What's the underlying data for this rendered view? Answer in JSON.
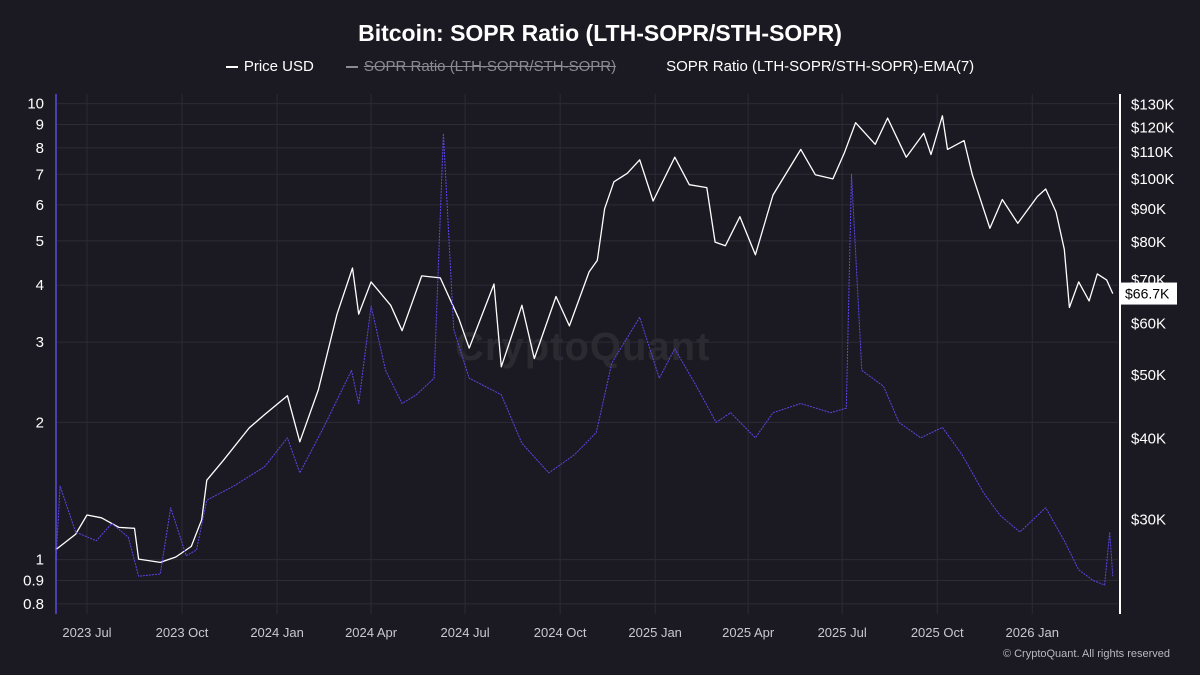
{
  "title": "Bitcoin: SOPR Ratio (LTH-SOPR/STH-SOPR)",
  "legend": [
    {
      "label": "Price USD",
      "color": "#ffffff",
      "enabled": true
    },
    {
      "label": "SOPR Ratio (LTH-SOPR/STH-SOPR)",
      "color": "#8b8a92",
      "enabled": false
    },
    {
      "label": "SOPR Ratio (LTH-SOPR/STH-SOPR)-EMA(7)",
      "color": "#5b46e6",
      "enabled": true
    }
  ],
  "watermark": "CryptoQuant",
  "copyright": "© CryptoQuant. All rights reserved",
  "price_badge": "$66.7K",
  "colors": {
    "background": "#1b1a22",
    "price": "#ffffff",
    "ratio_ema": "#5b46e6",
    "grid": "#2c2b36",
    "left_axis": "#4b3fb0"
  },
  "chart_data": {
    "type": "line",
    "title": "Bitcoin: SOPR Ratio (LTH-SOPR/STH-SOPR)",
    "x_range": [
      "2023-06-01",
      "2026-03-25"
    ],
    "x_ticks": [
      {
        "date": "2023-07-01",
        "label": "2023 Jul"
      },
      {
        "date": "2023-10-01",
        "label": "2023 Oct"
      },
      {
        "date": "2024-01-01",
        "label": "2024 Jan"
      },
      {
        "date": "2024-04-01",
        "label": "2024 Apr"
      },
      {
        "date": "2024-07-01",
        "label": "2024 Jul"
      },
      {
        "date": "2024-10-01",
        "label": "2024 Oct"
      },
      {
        "date": "2025-01-01",
        "label": "2025 Jan"
      },
      {
        "date": "2025-04-01",
        "label": "2025 Apr"
      },
      {
        "date": "2025-07-01",
        "label": "2025 Jul"
      },
      {
        "date": "2025-10-01",
        "label": "2025 Oct"
      },
      {
        "date": "2026-01-01",
        "label": "2026 Jan"
      }
    ],
    "y_left": {
      "scale": "log",
      "range": [
        0.76,
        10.5
      ],
      "ticks": [
        {
          "value": 0.8,
          "label": "0.8"
        },
        {
          "value": 0.9,
          "label": "0.9"
        },
        {
          "value": 1,
          "label": "1"
        },
        {
          "value": 2,
          "label": "2"
        },
        {
          "value": 3,
          "label": "3"
        },
        {
          "value": 4,
          "label": "4"
        },
        {
          "value": 5,
          "label": "5"
        },
        {
          "value": 6,
          "label": "6"
        },
        {
          "value": 7,
          "label": "7"
        },
        {
          "value": 8,
          "label": "8"
        },
        {
          "value": 9,
          "label": "9"
        },
        {
          "value": 10,
          "label": "10"
        }
      ]
    },
    "y_right": {
      "scale": "log",
      "range": [
        21500,
        135000
      ],
      "ticks": [
        {
          "value": 30000,
          "label": "$30K"
        },
        {
          "value": 40000,
          "label": "$40K"
        },
        {
          "value": 50000,
          "label": "$50K"
        },
        {
          "value": 60000,
          "label": "$60K"
        },
        {
          "value": 70000,
          "label": "$70K"
        },
        {
          "value": 80000,
          "label": "$80K"
        },
        {
          "value": 90000,
          "label": "$90K"
        },
        {
          "value": 100000,
          "label": "$100K"
        },
        {
          "value": 110000,
          "label": "$110K"
        },
        {
          "value": 120000,
          "label": "$120K"
        },
        {
          "value": 130000,
          "label": "$130K"
        }
      ]
    },
    "series": [
      {
        "name": "Price USD",
        "axis": "right",
        "color": "#ffffff",
        "points": [
          [
            "2023-06-01",
            27000
          ],
          [
            "2023-06-20",
            28500
          ],
          [
            "2023-07-01",
            30500
          ],
          [
            "2023-07-15",
            30200
          ],
          [
            "2023-08-01",
            29200
          ],
          [
            "2023-08-16",
            29100
          ],
          [
            "2023-08-20",
            26100
          ],
          [
            "2023-09-10",
            25800
          ],
          [
            "2023-09-25",
            26300
          ],
          [
            "2023-10-10",
            27300
          ],
          [
            "2023-10-20",
            30000
          ],
          [
            "2023-10-25",
            34500
          ],
          [
            "2023-11-10",
            37000
          ],
          [
            "2023-12-05",
            41500
          ],
          [
            "2023-12-20",
            43500
          ],
          [
            "2024-01-11",
            46500
          ],
          [
            "2024-01-23",
            39500
          ],
          [
            "2024-02-10",
            47500
          ],
          [
            "2024-02-28",
            62000
          ],
          [
            "2024-03-14",
            73000
          ],
          [
            "2024-03-20",
            62000
          ],
          [
            "2024-04-01",
            69500
          ],
          [
            "2024-04-20",
            64000
          ],
          [
            "2024-05-01",
            58500
          ],
          [
            "2024-05-20",
            71000
          ],
          [
            "2024-06-07",
            70500
          ],
          [
            "2024-06-25",
            61000
          ],
          [
            "2024-07-05",
            55000
          ],
          [
            "2024-07-29",
            69000
          ],
          [
            "2024-08-05",
            51500
          ],
          [
            "2024-08-25",
            64000
          ],
          [
            "2024-09-06",
            53000
          ],
          [
            "2024-09-27",
            66000
          ],
          [
            "2024-10-10",
            59500
          ],
          [
            "2024-10-29",
            72000
          ],
          [
            "2024-11-06",
            75000
          ],
          [
            "2024-11-13",
            90000
          ],
          [
            "2024-11-22",
            99000
          ],
          [
            "2024-12-05",
            102000
          ],
          [
            "2024-12-17",
            107000
          ],
          [
            "2024-12-30",
            92500
          ],
          [
            "2025-01-20",
            108000
          ],
          [
            "2025-02-03",
            98000
          ],
          [
            "2025-02-20",
            97000
          ],
          [
            "2025-02-28",
            80000
          ],
          [
            "2025-03-10",
            79000
          ],
          [
            "2025-03-24",
            87500
          ],
          [
            "2025-04-08",
            76500
          ],
          [
            "2025-04-25",
            94500
          ],
          [
            "2025-05-22",
            111000
          ],
          [
            "2025-06-05",
            101500
          ],
          [
            "2025-06-22",
            100000
          ],
          [
            "2025-07-03",
            109500
          ],
          [
            "2025-07-14",
            122000
          ],
          [
            "2025-08-02",
            113000
          ],
          [
            "2025-08-14",
            124000
          ],
          [
            "2025-09-01",
            108000
          ],
          [
            "2025-09-18",
            117500
          ],
          [
            "2025-09-25",
            109000
          ],
          [
            "2025-10-06",
            125000
          ],
          [
            "2025-10-11",
            111000
          ],
          [
            "2025-10-27",
            114500
          ],
          [
            "2025-11-04",
            101500
          ],
          [
            "2025-11-21",
            84000
          ],
          [
            "2025-12-03",
            93000
          ],
          [
            "2025-12-18",
            85500
          ],
          [
            "2026-01-06",
            94000
          ],
          [
            "2026-01-14",
            96500
          ],
          [
            "2026-01-24",
            89000
          ],
          [
            "2026-02-01",
            78000
          ],
          [
            "2026-02-06",
            63500
          ],
          [
            "2026-02-15",
            69500
          ],
          [
            "2026-02-25",
            65000
          ],
          [
            "2026-03-05",
            71500
          ],
          [
            "2026-03-14",
            70000
          ],
          [
            "2026-03-20",
            66700
          ]
        ]
      },
      {
        "name": "SOPR Ratio (LTH-SOPR/STH-SOPR)-EMA(7)",
        "axis": "left",
        "color": "#5b46e6",
        "points": [
          [
            "2023-06-01",
            1.0
          ],
          [
            "2023-06-05",
            1.45
          ],
          [
            "2023-06-20",
            1.15
          ],
          [
            "2023-07-10",
            1.1
          ],
          [
            "2023-07-25",
            1.2
          ],
          [
            "2023-08-10",
            1.12
          ],
          [
            "2023-08-20",
            0.92
          ],
          [
            "2023-09-10",
            0.93
          ],
          [
            "2023-09-20",
            1.3
          ],
          [
            "2023-10-05",
            1.02
          ],
          [
            "2023-10-15",
            1.05
          ],
          [
            "2023-10-25",
            1.35
          ],
          [
            "2023-11-20",
            1.45
          ],
          [
            "2023-12-20",
            1.6
          ],
          [
            "2024-01-11",
            1.85
          ],
          [
            "2024-01-23",
            1.55
          ],
          [
            "2024-02-15",
            1.95
          ],
          [
            "2024-03-13",
            2.6
          ],
          [
            "2024-03-20",
            2.2
          ],
          [
            "2024-04-01",
            3.6
          ],
          [
            "2024-04-15",
            2.6
          ],
          [
            "2024-05-01",
            2.2
          ],
          [
            "2024-05-15",
            2.3
          ],
          [
            "2024-06-01",
            2.5
          ],
          [
            "2024-06-10",
            8.6
          ],
          [
            "2024-06-20",
            3.2
          ],
          [
            "2024-07-05",
            2.5
          ],
          [
            "2024-08-05",
            2.3
          ],
          [
            "2024-08-25",
            1.8
          ],
          [
            "2024-09-20",
            1.55
          ],
          [
            "2024-10-15",
            1.7
          ],
          [
            "2024-11-05",
            1.9
          ],
          [
            "2024-11-20",
            2.7
          ],
          [
            "2024-12-17",
            3.4
          ],
          [
            "2025-01-05",
            2.5
          ],
          [
            "2025-01-20",
            2.9
          ],
          [
            "2025-02-10",
            2.4
          ],
          [
            "2025-03-01",
            2.0
          ],
          [
            "2025-03-15",
            2.1
          ],
          [
            "2025-04-08",
            1.85
          ],
          [
            "2025-04-25",
            2.1
          ],
          [
            "2025-05-22",
            2.2
          ],
          [
            "2025-06-20",
            2.1
          ],
          [
            "2025-07-05",
            2.15
          ],
          [
            "2025-07-10",
            7.0
          ],
          [
            "2025-07-20",
            2.6
          ],
          [
            "2025-08-10",
            2.4
          ],
          [
            "2025-08-25",
            2.0
          ],
          [
            "2025-09-15",
            1.85
          ],
          [
            "2025-10-06",
            1.95
          ],
          [
            "2025-10-25",
            1.7
          ],
          [
            "2025-11-15",
            1.4
          ],
          [
            "2025-12-01",
            1.25
          ],
          [
            "2025-12-20",
            1.15
          ],
          [
            "2026-01-14",
            1.3
          ],
          [
            "2026-02-01",
            1.1
          ],
          [
            "2026-02-15",
            0.95
          ],
          [
            "2026-03-01",
            0.9
          ],
          [
            "2026-03-12",
            0.88
          ],
          [
            "2026-03-17",
            1.15
          ],
          [
            "2026-03-20",
            0.92
          ]
        ]
      }
    ]
  }
}
